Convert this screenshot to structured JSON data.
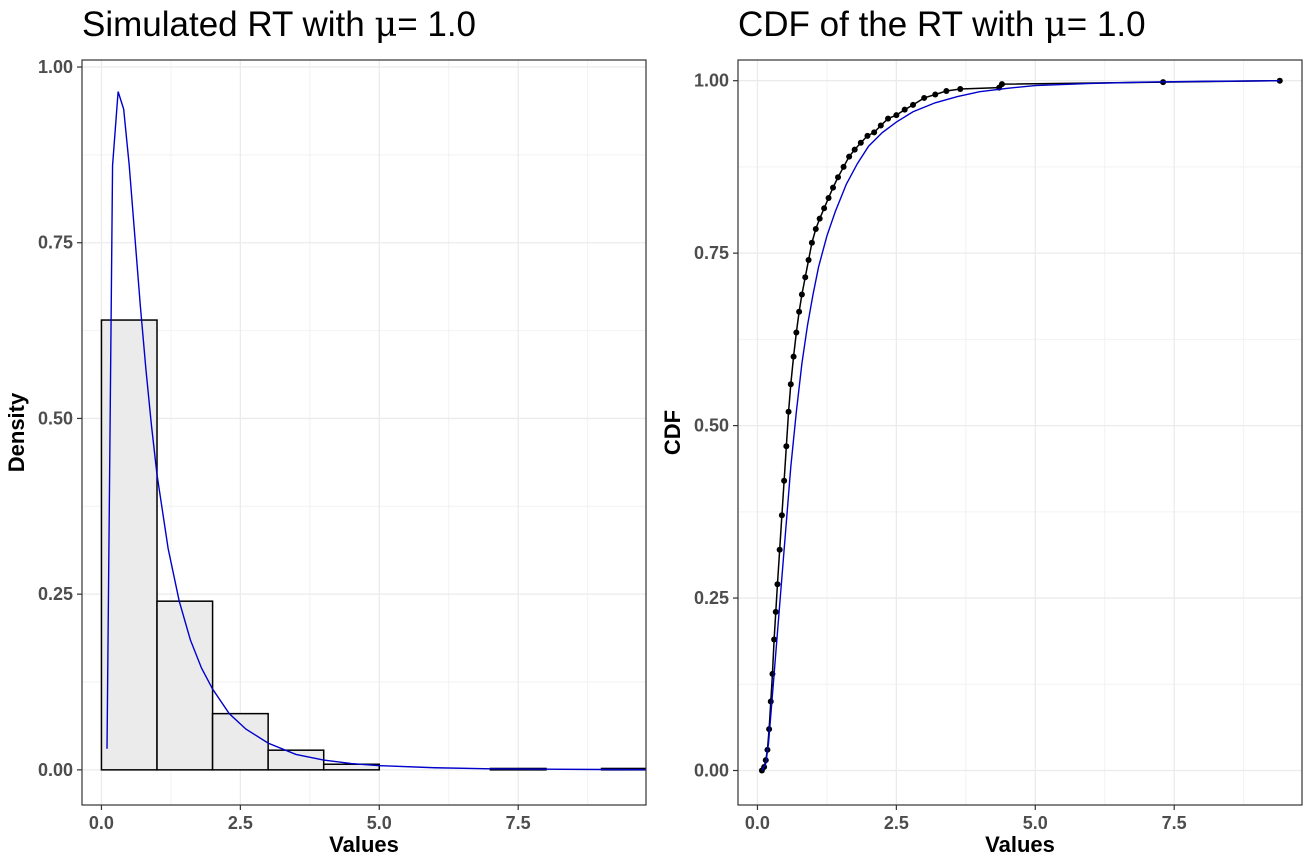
{
  "chart_data": [
    {
      "type": "bar",
      "title_prefix": "Simulated RT with ",
      "title_symbol": "μ",
      "title_suffix": "= 1.0",
      "xlabel": "Values",
      "ylabel": "Density",
      "xlim": [
        -0.35,
        9.8
      ],
      "ylim": [
        -0.05,
        1.01
      ],
      "x_ticks": [
        {
          "value": 0,
          "label": "0.0"
        },
        {
          "value": 2.5,
          "label": "2.5"
        },
        {
          "value": 5,
          "label": "5.0"
        },
        {
          "value": 7.5,
          "label": "7.5"
        }
      ],
      "y_ticks": [
        {
          "value": 0,
          "label": "0.00"
        },
        {
          "value": 0.25,
          "label": "0.25"
        },
        {
          "value": 0.5,
          "label": "0.50"
        },
        {
          "value": 0.75,
          "label": "0.75"
        },
        {
          "value": 1,
          "label": "1.00"
        }
      ],
      "grid": true,
      "bins": [
        {
          "x0": 0,
          "x1": 1,
          "density": 0.64
        },
        {
          "x0": 1,
          "x1": 2,
          "density": 0.24
        },
        {
          "x0": 2,
          "x1": 3,
          "density": 0.08
        },
        {
          "x0": 3,
          "x1": 4,
          "density": 0.028
        },
        {
          "x0": 4,
          "x1": 5,
          "density": 0.008
        },
        {
          "x0": 5,
          "x1": 6,
          "density": 0
        },
        {
          "x0": 6,
          "x1": 7,
          "density": 0
        },
        {
          "x0": 7,
          "x1": 8,
          "density": 0.002
        },
        {
          "x0": 8,
          "x1": 9,
          "density": 0
        },
        {
          "x0": 9,
          "x1": 10,
          "density": 0.002
        }
      ],
      "density_curve": {
        "color": "#0000cc",
        "x": [
          0.1,
          0.2,
          0.3,
          0.4,
          0.5,
          0.6,
          0.7,
          0.8,
          0.9,
          1.0,
          1.2,
          1.4,
          1.6,
          1.8,
          2.0,
          2.3,
          2.6,
          3.0,
          3.5,
          4.0,
          4.5,
          5.0,
          6.0,
          7.0,
          8.0,
          9.0,
          9.8
        ],
        "y": [
          0.03,
          0.86,
          0.965,
          0.94,
          0.86,
          0.76,
          0.66,
          0.57,
          0.49,
          0.42,
          0.315,
          0.24,
          0.185,
          0.145,
          0.115,
          0.08,
          0.058,
          0.038,
          0.022,
          0.014,
          0.009,
          0.006,
          0.003,
          0.0015,
          0.001,
          0.0005,
          0.0003
        ]
      }
    },
    {
      "type": "line",
      "title_prefix": "CDF of the RT with ",
      "title_symbol": "μ",
      "title_suffix": "= 1.0",
      "xlabel": "Values",
      "ylabel": "CDF",
      "xlim": [
        -0.35,
        9.8
      ],
      "ylim": [
        -0.05,
        1.03
      ],
      "x_ticks": [
        {
          "value": 0,
          "label": "0.0"
        },
        {
          "value": 2.5,
          "label": "2.5"
        },
        {
          "value": 5,
          "label": "5.0"
        },
        {
          "value": 7.5,
          "label": "7.5"
        }
      ],
      "y_ticks": [
        {
          "value": 0,
          "label": "0.00"
        },
        {
          "value": 0.25,
          "label": "0.25"
        },
        {
          "value": 0.5,
          "label": "0.50"
        },
        {
          "value": 0.75,
          "label": "0.75"
        },
        {
          "value": 1,
          "label": "1.00"
        }
      ],
      "grid": true,
      "empirical": {
        "color": "#000000",
        "x": [
          0.08,
          0.12,
          0.15,
          0.18,
          0.21,
          0.24,
          0.27,
          0.3,
          0.33,
          0.36,
          0.4,
          0.44,
          0.48,
          0.52,
          0.56,
          0.6,
          0.65,
          0.7,
          0.75,
          0.8,
          0.86,
          0.92,
          0.98,
          1.05,
          1.12,
          1.2,
          1.28,
          1.36,
          1.45,
          1.55,
          1.65,
          1.75,
          1.86,
          1.98,
          2.1,
          2.22,
          2.35,
          2.5,
          2.65,
          2.8,
          3.0,
          3.2,
          3.4,
          3.65,
          4.35,
          4.4,
          7.3,
          9.4
        ],
        "y": [
          0.0,
          0.005,
          0.015,
          0.03,
          0.06,
          0.1,
          0.14,
          0.19,
          0.23,
          0.27,
          0.32,
          0.37,
          0.42,
          0.47,
          0.52,
          0.56,
          0.6,
          0.635,
          0.665,
          0.69,
          0.715,
          0.74,
          0.765,
          0.785,
          0.8,
          0.815,
          0.83,
          0.845,
          0.86,
          0.875,
          0.89,
          0.9,
          0.91,
          0.92,
          0.925,
          0.935,
          0.945,
          0.95,
          0.958,
          0.965,
          0.975,
          0.98,
          0.985,
          0.988,
          0.99,
          0.995,
          0.998,
          1.0
        ]
      },
      "theoretical": {
        "color": "#0000cc",
        "x": [
          0.08,
          0.15,
          0.2,
          0.25,
          0.3,
          0.35,
          0.4,
          0.5,
          0.6,
          0.7,
          0.8,
          0.9,
          1.0,
          1.1,
          1.25,
          1.4,
          1.6,
          1.8,
          2.0,
          2.25,
          2.5,
          2.8,
          3.2,
          3.6,
          4.0,
          4.5,
          5.0,
          6.0,
          7.0,
          8.0,
          9.4
        ],
        "y": [
          0.0,
          0.01,
          0.04,
          0.09,
          0.14,
          0.19,
          0.24,
          0.34,
          0.44,
          0.52,
          0.59,
          0.645,
          0.69,
          0.73,
          0.775,
          0.81,
          0.85,
          0.88,
          0.905,
          0.925,
          0.94,
          0.955,
          0.968,
          0.977,
          0.984,
          0.989,
          0.993,
          0.996,
          0.998,
          0.999,
          1.0
        ]
      }
    }
  ]
}
